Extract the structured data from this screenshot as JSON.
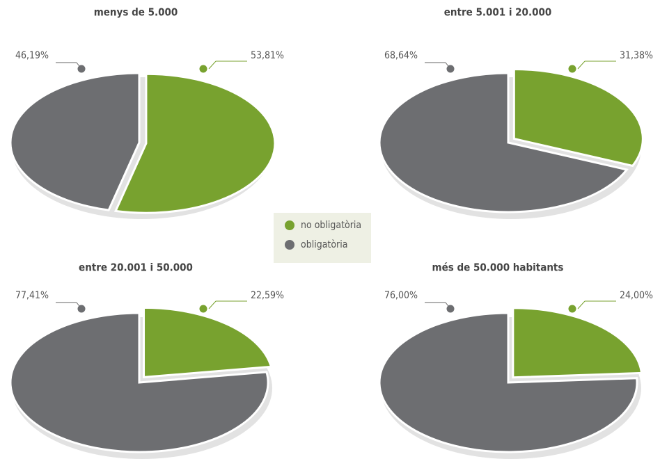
{
  "chart_data": [
    {
      "type": "pie",
      "title": "menys de 5.000",
      "categories": [
        "no obligatòria",
        "obligatòria"
      ],
      "values": [
        53.81,
        46.19
      ],
      "value_labels": [
        "53,81%",
        "46,19%"
      ],
      "colors": [
        "#78a22f",
        "#6d6e71"
      ]
    },
    {
      "type": "pie",
      "title": "entre 5.001 i 20.000",
      "categories": [
        "no obligatòria",
        "obligatòria"
      ],
      "values": [
        31.38,
        68.64
      ],
      "value_labels": [
        "31,38%",
        "68,64%"
      ],
      "colors": [
        "#78a22f",
        "#6d6e71"
      ]
    },
    {
      "type": "pie",
      "title": "entre 20.001 i 50.000",
      "categories": [
        "no obligatòria",
        "obligatòria"
      ],
      "values": [
        22.59,
        77.41
      ],
      "value_labels": [
        "22,59%",
        "77,41%"
      ],
      "colors": [
        "#78a22f",
        "#6d6e71"
      ]
    },
    {
      "type": "pie",
      "title": "més de 50.000 habitants",
      "categories": [
        "no obligatòria",
        "obligatòria"
      ],
      "values": [
        24.0,
        76.0
      ],
      "value_labels": [
        "24,00%",
        "76,00%"
      ],
      "colors": [
        "#78a22f",
        "#6d6e71"
      ]
    }
  ]
}
